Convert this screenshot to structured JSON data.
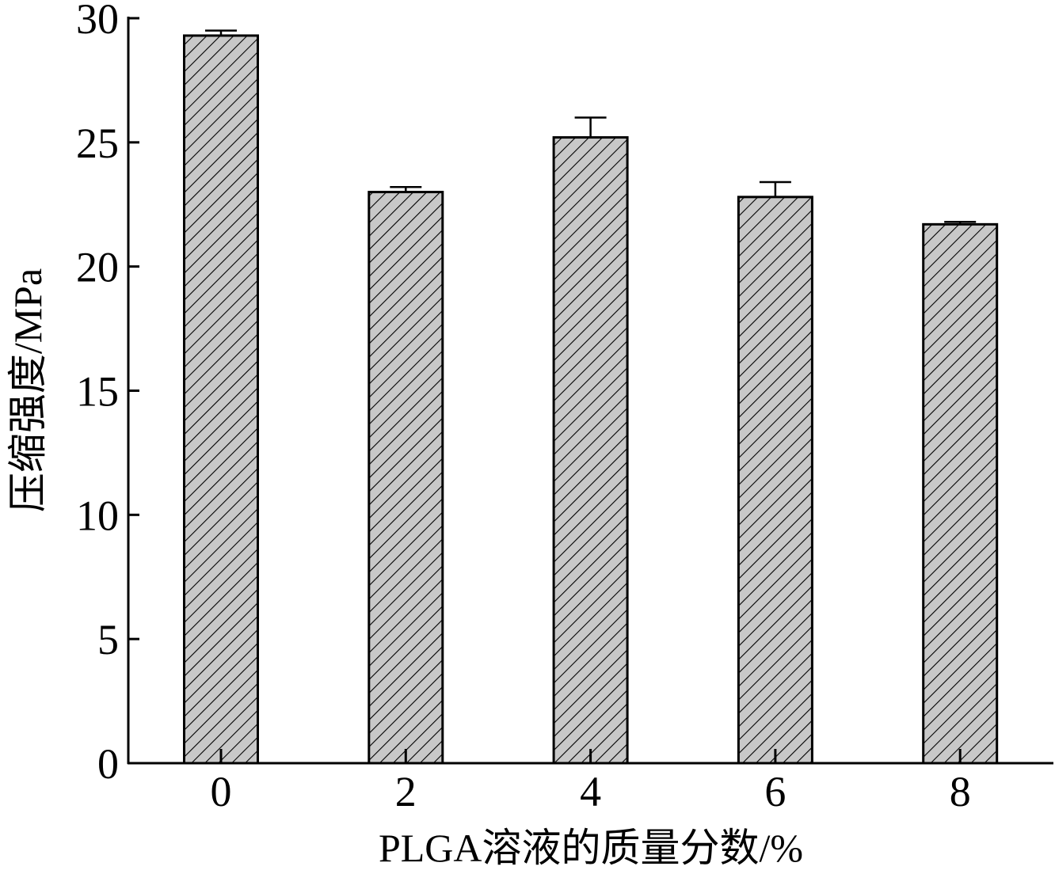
{
  "chart_data": {
    "type": "bar",
    "title": "",
    "xlabel": "PLGA溶液的质量分数/%",
    "ylabel": "压缩强度/MPa",
    "categories": [
      "0",
      "2",
      "4",
      "6",
      "8"
    ],
    "values": [
      29.3,
      23.0,
      25.2,
      22.8,
      21.7
    ],
    "errors": [
      0.2,
      0.2,
      0.8,
      0.6,
      0.1
    ],
    "ylim": [
      0,
      30
    ],
    "yticks": [
      "0",
      "5",
      "10",
      "15",
      "20",
      "25",
      "30"
    ],
    "grid": false,
    "legend": "none"
  },
  "style": {
    "bar_fill": "#c8c8c8",
    "bar_stroke": "#000000",
    "hatch_color": "#000000",
    "axis_color": "#000000"
  }
}
